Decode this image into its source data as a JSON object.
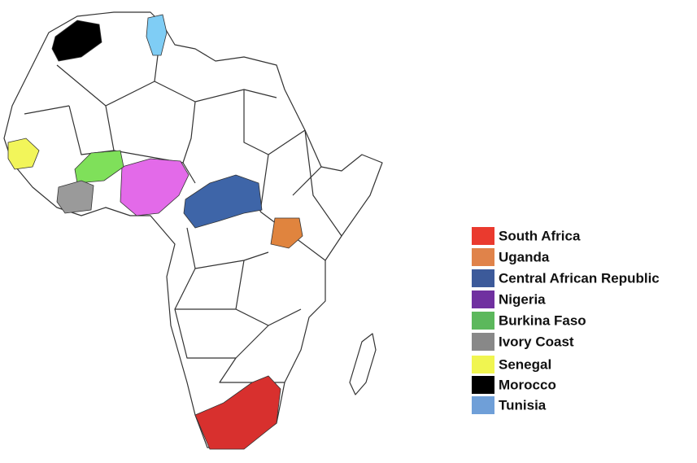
{
  "legend": {
    "items": [
      {
        "label": "South Africa",
        "color": "#ea3a2e",
        "map_color": "#d8302e"
      },
      {
        "label": "Uganda",
        "color": "#e0834a",
        "map_color": "#e0843e"
      },
      {
        "label": "Central African Republic",
        "color": "#3c5a9a",
        "map_color": "#3e65a8"
      },
      {
        "label": "Nigeria",
        "color": "#7030a0",
        "map_color": "#e36ae9"
      },
      {
        "label": "Burkina Faso",
        "color": "#5cb85c",
        "map_color": "#7fe05a"
      },
      {
        "label": "Ivory Coast",
        "color": "#888888",
        "map_color": "#9a9a9a"
      },
      {
        "label": "Senegal",
        "color": "#f0f550",
        "map_color": "#f2f55a"
      },
      {
        "label": "Morocco",
        "color": "#000000",
        "map_color": "#000000"
      },
      {
        "label": "Tunisia",
        "color": "#6f9fd8",
        "map_color": "#7fcdf5"
      }
    ]
  }
}
